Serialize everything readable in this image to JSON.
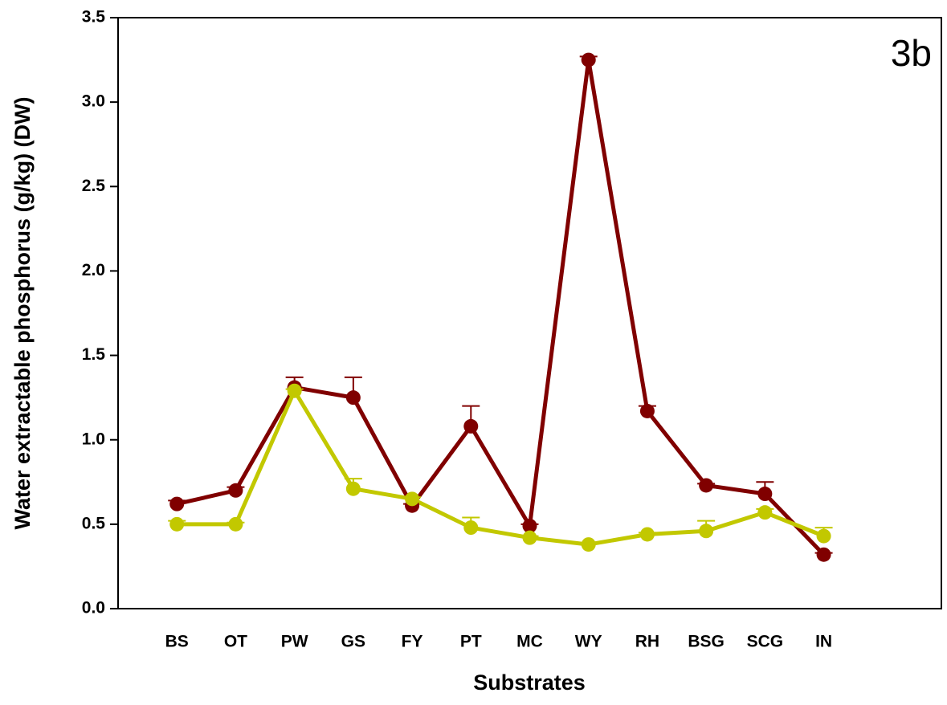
{
  "chart_data": {
    "type": "line",
    "annotation": "3b",
    "x_label": "Substrates",
    "y_label": "Water extractable phosphorus (g/kg) (DW)",
    "categories": [
      "BS",
      "OT",
      "PW",
      "GS",
      "FY",
      "PT",
      "MC",
      "WY",
      "RH",
      "BSG",
      "SCG",
      "IN"
    ],
    "series": [
      {
        "color": "#800000",
        "values": [
          0.62,
          0.7,
          1.31,
          1.25,
          0.61,
          1.08,
          0.49,
          3.25,
          1.17,
          0.73,
          0.68,
          0.32
        ],
        "errors": [
          0.02,
          0.02,
          0.06,
          0.12,
          0.01,
          0.12,
          0.01,
          0.02,
          0.03,
          0.01,
          0.07,
          0.01
        ]
      },
      {
        "color": "#c2c800",
        "values": [
          0.5,
          0.5,
          1.29,
          0.71,
          0.65,
          0.48,
          0.42,
          0.38,
          0.44,
          0.46,
          0.57,
          0.43
        ],
        "errors": [
          0.02,
          0.01,
          0.01,
          0.06,
          0.01,
          0.06,
          0.01,
          0.01,
          0.01,
          0.06,
          0.02,
          0.05
        ]
      }
    ],
    "ylim": [
      0,
      3.5
    ],
    "yticks": [
      {
        "value": 0,
        "label": "0.0"
      },
      0.5,
      {
        "value": 1,
        "label": "1.0"
      },
      1.5,
      {
        "value": 2,
        "label": "2.0"
      },
      2.5,
      {
        "value": 3,
        "label": "3.0"
      },
      3.5
    ],
    "grid": false
  }
}
